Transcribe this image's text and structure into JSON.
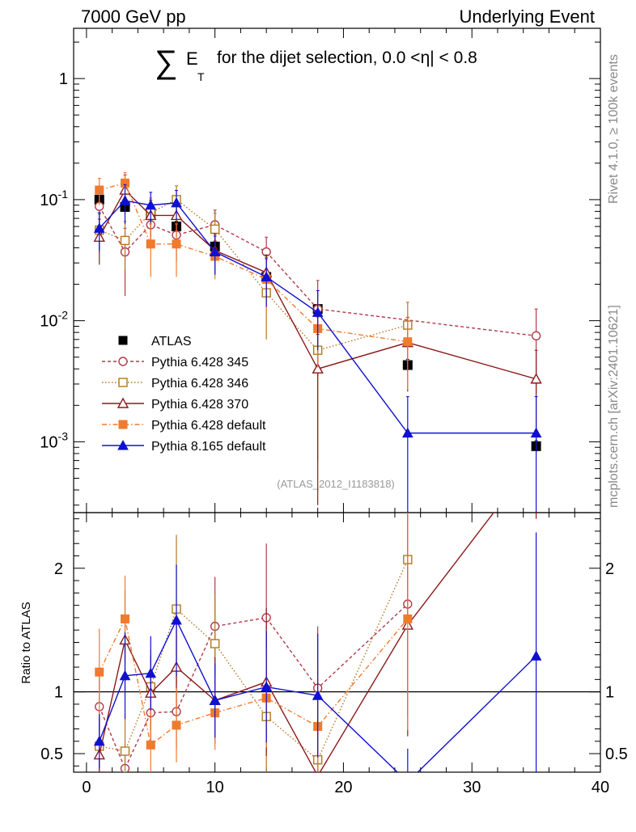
{
  "header": {
    "left": "7000 GeV pp",
    "right": "Underlying Event"
  },
  "title": {
    "sigma": "∑",
    "e": "E",
    "sub": "T",
    "text": "for the dijet selection, 0.0 <η| < 0.8"
  },
  "side_labels": {
    "rivet": "Rivet 4.1.0, ≥ 100k events",
    "mcplots": "mcplots.cern.ch [arXiv:2401.10621]"
  },
  "analysis_id": "(ATLAS_2012_I1183818)",
  "ratio_ylabel": "Ratio to ATLAS",
  "chart_data": {
    "type": "scatter",
    "title": "∑E_T for the dijet selection, 0.0 < |η| < 0.8",
    "xlabel": "",
    "ylabel": "",
    "xlim": [
      -1,
      40
    ],
    "xticks": [
      0,
      10,
      20,
      30,
      40
    ],
    "main": {
      "scale": "log",
      "ylim": [
        0.00026,
        2.6
      ],
      "yticks": [
        {
          "v": 1,
          "label": "1"
        },
        {
          "v": 0.1,
          "label": "10^-1"
        },
        {
          "v": 0.01,
          "label": "10^-2"
        },
        {
          "v": 0.001,
          "label": "10^-3"
        }
      ]
    },
    "ratio": {
      "ylim": [
        0.35,
        2.45
      ],
      "yticks": [
        {
          "v": 0.5,
          "label": "0.5"
        },
        {
          "v": 1,
          "label": "1"
        },
        {
          "v": 2,
          "label": "2"
        }
      ]
    },
    "x": [
      1,
      3,
      5,
      7,
      10,
      14,
      18,
      25,
      35
    ],
    "series": [
      {
        "name": "ATLAS",
        "color": "#000000",
        "marker": "square-filled",
        "dash": "none",
        "values": [
          0.1,
          0.087,
          0.075,
          0.06,
          0.041,
          0.023,
          0.0125,
          0.0043,
          0.00092
        ],
        "errors": [
          0.008,
          0.01,
          0.007,
          0.006,
          0.004,
          0.003,
          0.001,
          0.0005,
          0.0001
        ],
        "ratio": null,
        "ratio_errors": null
      },
      {
        "name": "Pythia 6.428 345",
        "color": "#b03a4a",
        "marker": "circle-open",
        "dash": "4,3",
        "values": [
          0.088,
          0.037,
          0.062,
          0.051,
          0.062,
          0.037,
          0.0125,
          null,
          0.0075
        ],
        "errors": [
          0.03,
          0.021,
          0.02,
          0.02,
          0.02,
          0.012,
          0.009,
          null,
          0.005
        ],
        "ratio": [
          0.88,
          0.38,
          0.83,
          0.84,
          1.53,
          1.6,
          1.03,
          1.71,
          null
        ],
        "ratio_errors": [
          0.3,
          0.2,
          0.25,
          0.3,
          0.4,
          0.6,
          0.5,
          0.9,
          null
        ]
      },
      {
        "name": "Pythia 6.428 346",
        "color": "#b07820",
        "marker": "square-open",
        "dash": "1.5,2.5",
        "values": [
          0.056,
          0.046,
          0.078,
          0.1,
          0.057,
          0.017,
          0.0057,
          0.0092,
          null
        ],
        "errors": [
          0.02,
          0.02,
          0.025,
          0.03,
          0.02,
          0.01,
          0.005,
          0.005,
          null
        ],
        "ratio": [
          0.56,
          0.52,
          1.04,
          1.67,
          1.39,
          0.8,
          0.45,
          2.07,
          null
        ],
        "ratio_errors": [
          0.25,
          0.3,
          0.3,
          0.6,
          0.4,
          0.5,
          0.4,
          1.0,
          null
        ]
      },
      {
        "name": "Pythia 6.428 370",
        "color": "#8b1a1a",
        "marker": "triangle-open",
        "dash": "none",
        "values": [
          0.049,
          0.12,
          0.074,
          0.074,
          0.038,
          0.025,
          0.004,
          0.0066,
          0.0033
        ],
        "errors": [
          0.02,
          0.04,
          0.025,
          0.025,
          0.014,
          0.01,
          0.0037,
          0.004,
          0.0024
        ],
        "ratio": [
          0.49,
          1.42,
          0.99,
          1.2,
          0.93,
          1.08,
          0.32,
          1.54,
          2.9
        ],
        "ratio_errors": [
          0.3,
          0.4,
          0.3,
          0.4,
          0.35,
          0.6,
          0.6,
          0.9,
          0.5
        ]
      },
      {
        "name": "Pythia 6.428 default",
        "color": "#f07a2e",
        "marker": "square-filled",
        "dash": "6,3,1.5,3",
        "values": [
          0.12,
          0.137,
          0.043,
          0.043,
          0.034,
          0.022,
          0.0086,
          0.0067,
          null
        ],
        "errors": [
          0.03,
          0.03,
          0.02,
          0.02,
          0.012,
          0.01,
          0.0045,
          0.004,
          null
        ],
        "ratio": [
          1.16,
          1.59,
          0.57,
          0.73,
          0.83,
          0.95,
          0.72,
          1.59,
          null
        ],
        "ratio_errors": [
          0.35,
          0.35,
          0.3,
          0.3,
          0.3,
          0.4,
          0.5,
          0.9,
          null
        ]
      },
      {
        "name": "Pythia 8.165 default",
        "color": "#1010d0",
        "marker": "triangle-filled",
        "dash": "none",
        "values": [
          0.058,
          0.098,
          0.09,
          0.094,
          0.037,
          0.023,
          0.0117,
          0.00118,
          0.00118
        ],
        "errors": [
          0.02,
          0.035,
          0.025,
          0.025,
          0.013,
          0.01,
          0.006,
          0.00118,
          0.00118
        ],
        "ratio": [
          0.6,
          1.13,
          1.15,
          1.58,
          0.93,
          1.04,
          0.97,
          0.27,
          1.29
        ],
        "ratio_errors": [
          0.22,
          0.35,
          0.3,
          0.45,
          0.3,
          0.45,
          0.5,
          0.27,
          1.0
        ]
      }
    ]
  }
}
